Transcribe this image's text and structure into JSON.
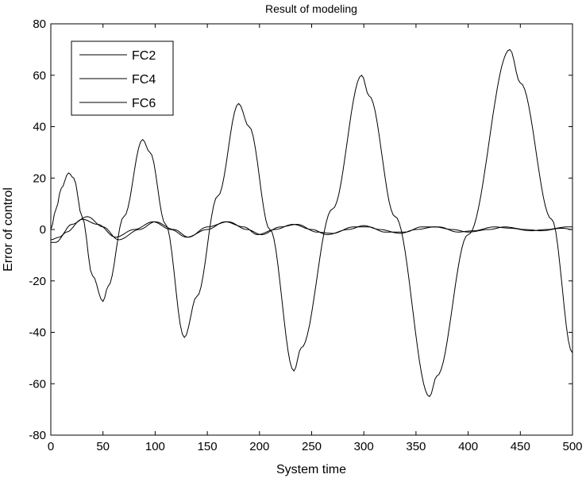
{
  "chart_data": {
    "type": "line",
    "title": "Result of modeling",
    "xlabel": "System time",
    "ylabel": "Error of control",
    "xlim": [
      0,
      500
    ],
    "ylim": [
      -80,
      80
    ],
    "xticks": [
      0,
      50,
      100,
      150,
      200,
      250,
      300,
      350,
      400,
      450,
      500
    ],
    "yticks": [
      -80,
      -60,
      -40,
      -20,
      0,
      20,
      40,
      60,
      80
    ],
    "grid": false,
    "legend_position": "top-left",
    "series": [
      {
        "name": "FC2",
        "color": "#000000",
        "x": [
          0,
          5,
          10,
          17,
          22,
          30,
          40,
          50,
          55,
          70,
          88,
          95,
          110,
          128,
          140,
          160,
          180,
          190,
          210,
          233,
          240,
          270,
          298,
          305,
          330,
          363,
          370,
          400,
          440,
          450,
          480,
          500
        ],
        "y": [
          0,
          8,
          16,
          22,
          20,
          5,
          -18,
          -28,
          -22,
          5,
          35,
          30,
          2,
          -42,
          -26,
          13,
          49,
          40,
          0,
          -55,
          -46,
          8,
          60,
          52,
          5,
          -65,
          -57,
          -2,
          70,
          57,
          4,
          -48
        ]
      },
      {
        "name": "FC4",
        "color": "#000000",
        "x": [
          0,
          5,
          15,
          30,
          45,
          62,
          80,
          98,
          115,
          130,
          150,
          167,
          185,
          198,
          215,
          232,
          250,
          265,
          285,
          300,
          315,
          335,
          350,
          368,
          385,
          400,
          420,
          435,
          455,
          470,
          490,
          500
        ],
        "y": [
          -5,
          -5,
          -1,
          4,
          2,
          -3,
          0,
          3,
          0,
          -3,
          0,
          3,
          1,
          -2,
          0,
          2,
          0,
          -2,
          0,
          1.5,
          0,
          -1.5,
          0,
          1,
          0,
          -1,
          0,
          1,
          0,
          -0.5,
          0.5,
          0
        ]
      },
      {
        "name": "FC6",
        "color": "#000000",
        "x": [
          0,
          8,
          20,
          35,
          50,
          65,
          85,
          100,
          118,
          132,
          150,
          170,
          188,
          202,
          220,
          236,
          255,
          270,
          290,
          305,
          320,
          340,
          355,
          372,
          390,
          405,
          425,
          440,
          460,
          475,
          495,
          500
        ],
        "y": [
          -4,
          -3,
          2,
          5,
          1,
          -4,
          0,
          3,
          0,
          -3,
          1,
          3,
          0,
          -2,
          1,
          2,
          -1,
          -1.5,
          1,
          1,
          -1,
          -1,
          1,
          1,
          -1,
          -0.5,
          1,
          0.5,
          -0.5,
          0,
          1,
          1
        ]
      }
    ]
  }
}
